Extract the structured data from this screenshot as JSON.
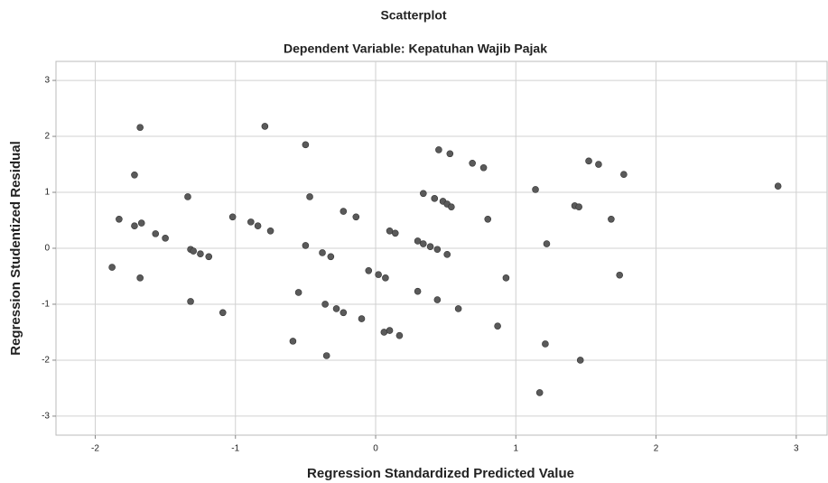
{
  "chart_data": {
    "type": "scatter",
    "title": "Scatterplot",
    "subtitle": "Dependent Variable: Kepatuhan Wajib Pajak",
    "x_label": "Regression Standardized Predicted Value",
    "y_label": "Regression Studentized Residual",
    "color": "#5a5a5a",
    "grid": true,
    "xlim": [
      -2.28,
      3.22
    ],
    "ylim": [
      -3.34,
      3.34
    ],
    "xticks": [
      -2,
      -1,
      0,
      1,
      2,
      3
    ],
    "yticks": [
      -3,
      -2,
      -1,
      0,
      1,
      2,
      3
    ],
    "x": [
      -1.68,
      -0.79,
      -0.5,
      -1.72,
      -0.47,
      -1.34,
      -1.83,
      -1.72,
      -1.67,
      -1.57,
      -1.5,
      -1.02,
      -0.89,
      -0.84,
      -0.75,
      -0.23,
      -0.14,
      -0.5,
      -0.38,
      -0.32,
      -1.32,
      -1.3,
      -1.25,
      -1.19,
      -1.88,
      -1.68,
      -1.32,
      -1.09,
      -0.55,
      -0.36,
      -0.28,
      -0.23,
      -0.1,
      -0.59,
      -0.35,
      -0.05,
      0.02,
      0.07,
      0.1,
      0.14,
      0.06,
      0.1,
      0.17,
      0.45,
      0.53,
      0.69,
      0.77,
      0.34,
      0.42,
      0.48,
      0.51,
      0.54,
      0.8,
      0.3,
      0.34,
      0.39,
      0.44,
      0.51,
      0.3,
      0.44,
      0.59,
      0.87,
      0.93,
      1.14,
      1.22,
      1.21,
      1.17,
      1.42,
      1.45,
      1.46,
      1.52,
      1.59,
      1.77,
      1.68,
      1.74,
      2.87
    ],
    "values": [
      2.16,
      2.18,
      1.85,
      1.31,
      0.92,
      0.92,
      0.52,
      0.4,
      0.45,
      0.26,
      0.18,
      0.56,
      0.47,
      0.4,
      0.31,
      0.66,
      0.56,
      0.05,
      -0.08,
      -0.15,
      -0.02,
      -0.05,
      -0.1,
      -0.15,
      -0.34,
      -0.53,
      -0.95,
      -1.15,
      -0.79,
      -1.0,
      -1.08,
      -1.15,
      -1.26,
      -1.66,
      -1.92,
      -0.4,
      -0.47,
      -0.53,
      0.31,
      0.27,
      -1.5,
      -1.47,
      -1.56,
      1.76,
      1.69,
      1.52,
      1.44,
      0.98,
      0.89,
      0.84,
      0.79,
      0.74,
      0.52,
      0.13,
      0.08,
      0.03,
      -0.02,
      -0.11,
      -0.77,
      -0.92,
      -1.08,
      -1.39,
      -0.53,
      1.05,
      0.08,
      -1.71,
      -2.58,
      0.76,
      0.74,
      -2.0,
      1.56,
      1.5,
      1.32,
      0.52,
      -0.48,
      1.11
    ]
  }
}
